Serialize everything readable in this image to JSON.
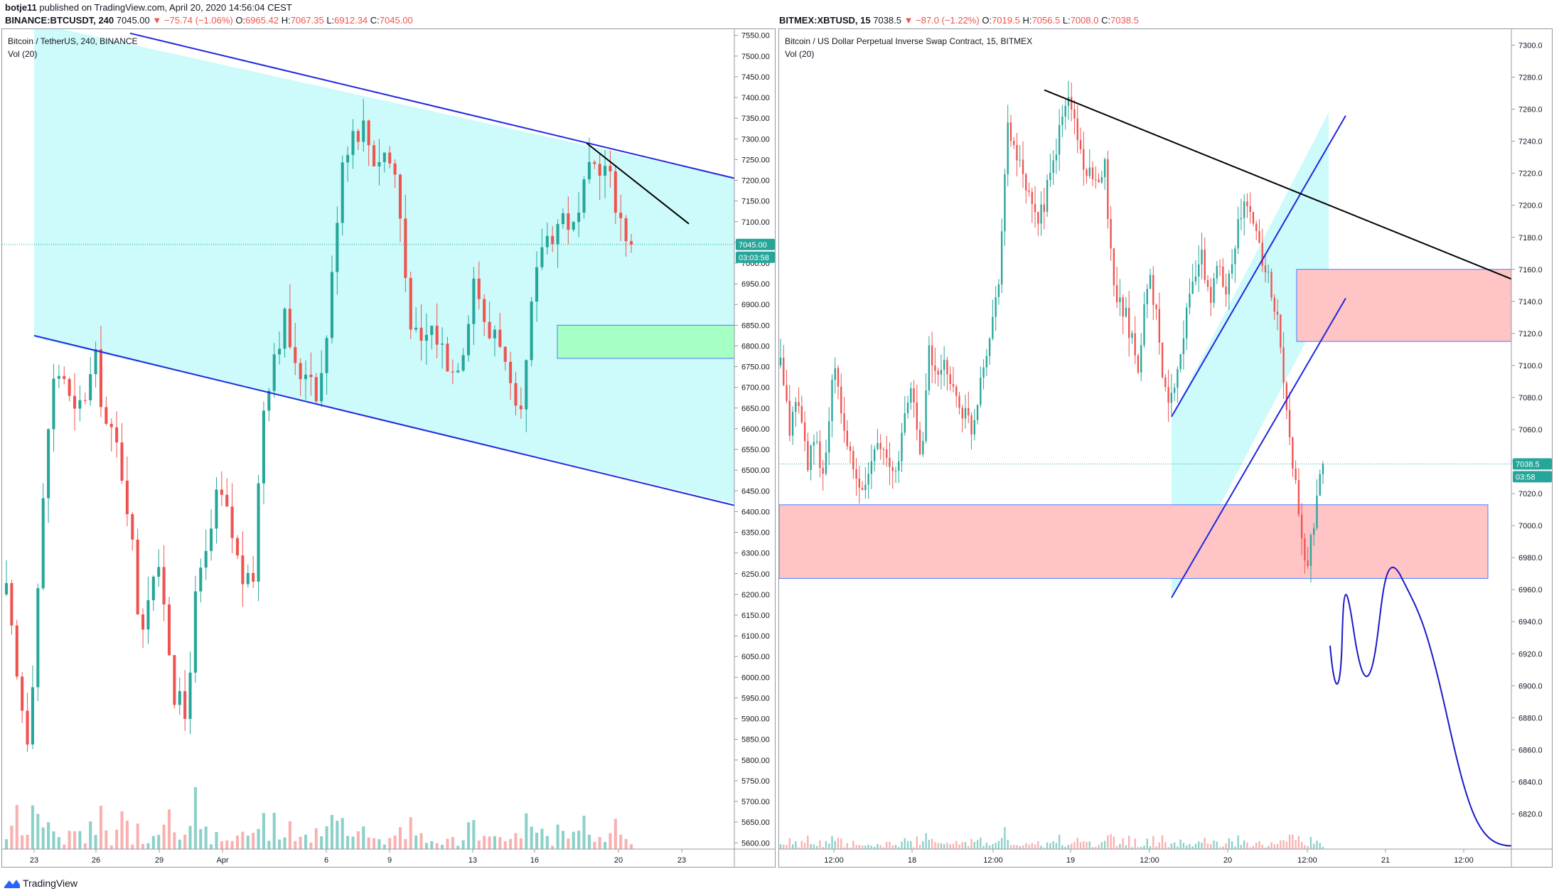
{
  "header": {
    "user": "botje11",
    "published": "published on TradingView.com, April 20, 2020 14:56:04 CEST"
  },
  "left": {
    "ohlc": {
      "symbol": "BINANCE:BTCUSDT, 240",
      "price": "7045.00",
      "change": "▼ −75.74 (−1.06%)",
      "o_label": "O:",
      "o": "6965.42",
      "h_label": "H:",
      "h": "7067.35",
      "l_label": "L:",
      "l": "6912.34",
      "c_label": "C:",
      "c": "7045.00"
    },
    "legend_title": "Bitcoin / TetherUS, 240, BINANCE",
    "legend_vol": "Vol (20)",
    "last_price_label": "7045.00",
    "countdown": "03:03:58"
  },
  "right": {
    "ohlc": {
      "symbol": "BITMEX:XBTUSD, 15",
      "price": "7038.5",
      "change": "▼ −87.0 (−1.22%)",
      "o_label": "O:",
      "o": "7019.5",
      "h_label": "H:",
      "h": "7056.5",
      "l_label": "L:",
      "l": "7008.0",
      "c_label": "C:",
      "c": "7038.5"
    },
    "legend_title": "Bitcoin / US Dollar Perpetual Inverse Swap Contract, 15, BITMEX",
    "legend_vol": "Vol (20)",
    "last_price_label": "7038.5",
    "countdown": "03:58"
  },
  "footer": {
    "brand": "TradingView"
  },
  "colors": {
    "up": "#26a69a",
    "down": "#ef5350",
    "channel_fill": "#c8fafa",
    "trend_blue": "#1f28e0",
    "green_zone": "#a6ffc4",
    "red_zone": "#ffc4c6"
  },
  "chart_data": [
    {
      "type": "candlestick",
      "title": "Bitcoin / TetherUS, 240, BINANCE",
      "y_axis_ticks": [
        5600,
        5650,
        5700,
        5750,
        5800,
        5850,
        5900,
        5950,
        6000,
        6050,
        6100,
        6150,
        6200,
        6250,
        6300,
        6350,
        6400,
        6450,
        6500,
        6550,
        6600,
        6650,
        6700,
        6750,
        6800,
        6850,
        6900,
        6950,
        7000,
        7050,
        7100,
        7150,
        7200,
        7250,
        7300,
        7350,
        7400,
        7450,
        7500,
        7550
      ],
      "ylim": [
        5585,
        7565
      ],
      "x_tick_labels": [
        "23",
        "26",
        "29",
        "Apr",
        "6",
        "9",
        "13",
        "16",
        "20",
        "23"
      ],
      "series_close_path": [
        6200,
        5980,
        5850,
        6300,
        6700,
        6750,
        6620,
        6680,
        6760,
        6600,
        6550,
        6400,
        6100,
        6260,
        6220,
        5970,
        5900,
        6200,
        6300,
        6450,
        6370,
        6250,
        6200,
        6650,
        6790,
        6870,
        6720,
        6760,
        6680,
        6900,
        7250,
        7320,
        7330,
        7250,
        7270,
        7200,
        6900,
        6780,
        6850,
        6800,
        6740,
        6810,
        6990,
        6810,
        6860,
        6700,
        6580,
        6870,
        7050,
        7080,
        7120,
        7070,
        7200,
        7250,
        7210,
        7110,
        7045
      ],
      "last_price": 7045.0
    },
    {
      "type": "candlestick",
      "title": "Bitcoin / US Dollar Perpetual Inverse Swap Contract, 15, BITMEX",
      "y_axis_ticks": [
        6820,
        6840,
        6860,
        6880,
        6900,
        6920,
        6940,
        6960,
        6980,
        7000,
        7020,
        7040,
        7060,
        7080,
        7100,
        7120,
        7140,
        7160,
        7180,
        7200,
        7220,
        7240,
        7260,
        7280,
        7300
      ],
      "ylim": [
        6798,
        7310
      ],
      "x_tick_labels": [
        "12:00",
        "18",
        "12:00",
        "19",
        "12:00",
        "20",
        "12:00",
        "21",
        "12:00"
      ],
      "series_close_path": [
        7100,
        7060,
        7080,
        7040,
        7050,
        7030,
        7100,
        7070,
        7040,
        7020,
        7030,
        7060,
        7040,
        7030,
        7060,
        7090,
        7040,
        7110,
        7090,
        7100,
        7080,
        7070,
        7060,
        7100,
        7120,
        7160,
        7250,
        7230,
        7210,
        7190,
        7200,
        7220,
        7250,
        7270,
        7240,
        7220,
        7210,
        7230,
        7150,
        7140,
        7120,
        7100,
        7160,
        7130,
        7080,
        7090,
        7120,
        7150,
        7170,
        7140,
        7160,
        7150,
        7180,
        7200,
        7190,
        7170,
        7150,
        7120,
        7060,
        7020,
        6970,
        7000,
        7038.5
      ],
      "last_price": 7038.5
    }
  ]
}
